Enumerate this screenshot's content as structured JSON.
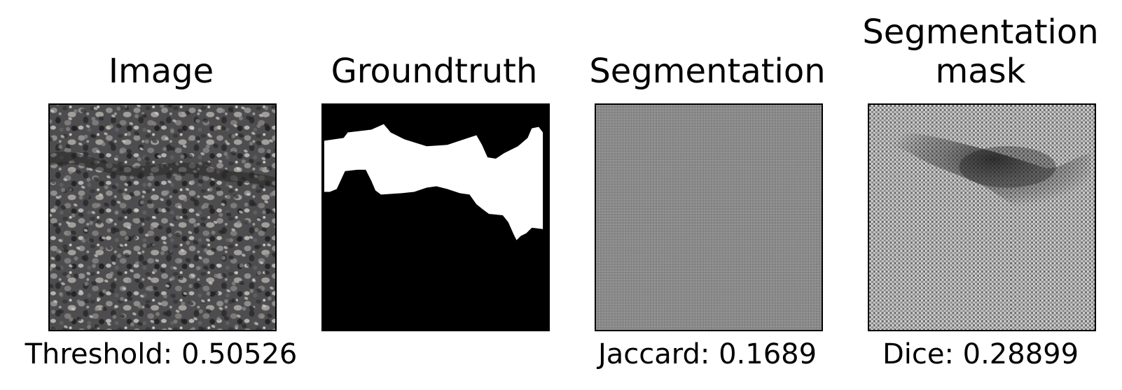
{
  "panels": [
    {
      "title": "Image",
      "caption": "Threshold: 0.50526"
    },
    {
      "title": "Groundtruth",
      "caption": ""
    },
    {
      "title": "Segmentation",
      "caption": "Jaccard: 0.1689"
    },
    {
      "title": "Segmentation mask",
      "caption": "Dice: 0.28899"
    }
  ],
  "colors": {
    "background": "#ffffff",
    "frame": "#000000",
    "mask_foreground": "#ffffff",
    "mask_background": "#000000",
    "segmentation_gray": "#8a8a8a"
  }
}
